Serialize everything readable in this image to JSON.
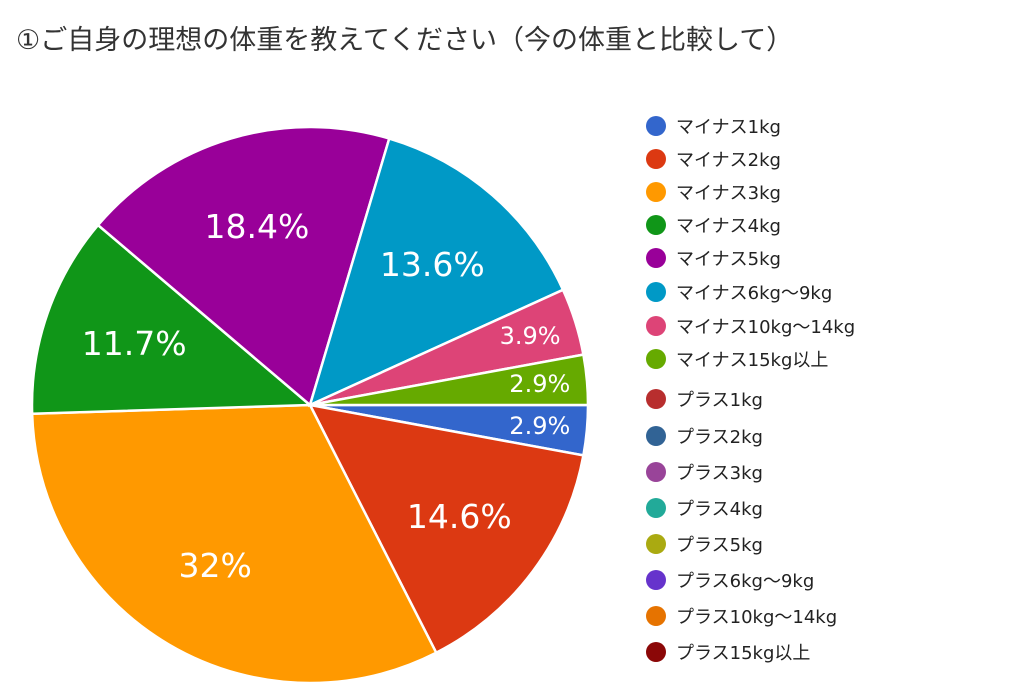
{
  "chart_data": {
    "type": "pie",
    "title": "①ご自身の理想の体重を教えてください（今の体重と比較して）",
    "categories": [
      "マイナス1kg",
      "マイナス2kg",
      "マイナス3kg",
      "マイナス4kg",
      "マイナス5kg",
      "マイナス6kg〜9kg",
      "マイナス10kg〜14kg",
      "マイナス15kg以上",
      "プラス1kg",
      "プラス2kg",
      "プラス3kg",
      "プラス4kg",
      "プラス5kg",
      "プラス6kg〜9kg",
      "プラス10kg〜14kg",
      "プラス15kg以上"
    ],
    "values": [
      2.9,
      14.6,
      32.0,
      11.7,
      18.4,
      13.6,
      3.9,
      2.9,
      0,
      0,
      0,
      0,
      0,
      0,
      0,
      0
    ],
    "data_labels": [
      "2.9%",
      "14.6%",
      "32%",
      "11.7%",
      "18.4%",
      "13.6%",
      "3.9%",
      "2.9%",
      "",
      "",
      "",
      "",
      "",
      "",
      "",
      ""
    ],
    "colors": [
      "#3366cc",
      "#dc3912",
      "#ff9900",
      "#109618",
      "#990099",
      "#0099c6",
      "#dd4477",
      "#66aa00",
      "#b82e2e",
      "#316395",
      "#994499",
      "#22aa99",
      "#aaaa11",
      "#6633cc",
      "#e67300",
      "#8b0707"
    ],
    "legend_position": "right"
  }
}
